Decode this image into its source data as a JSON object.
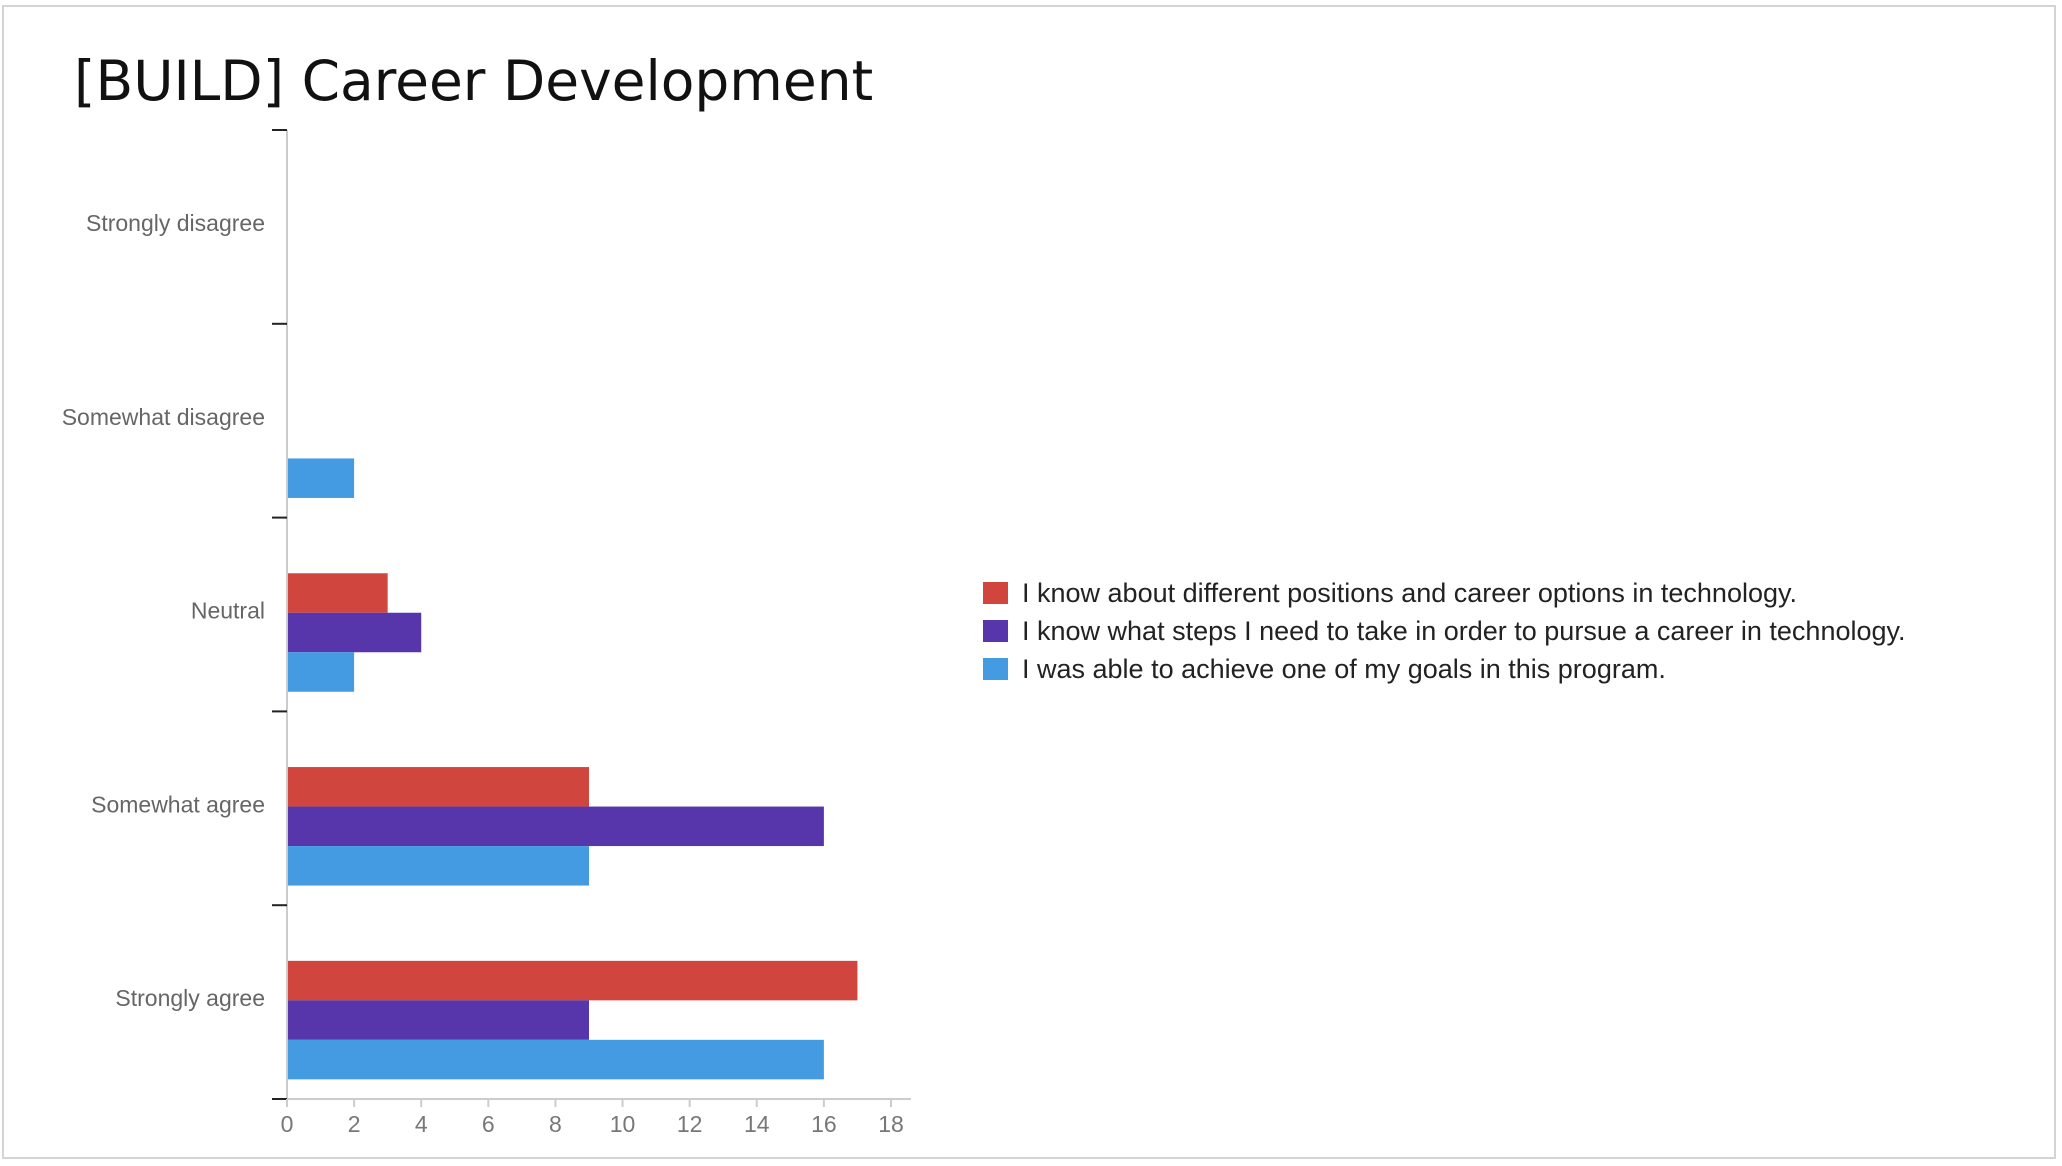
{
  "slide": {
    "title": "[BUILD] Career Development"
  },
  "chart_data": {
    "type": "bar",
    "orientation": "horizontal",
    "title": "",
    "xlabel": "",
    "ylabel": "",
    "categories": [
      "Strongly disagree",
      "Somewhat disagree",
      "Neutral",
      "Somewhat agree",
      "Strongly agree"
    ],
    "series": [
      {
        "name": "I know about different positions and career options in technology.",
        "color": "#d1453f",
        "values": [
          0,
          0,
          3,
          9,
          17
        ]
      },
      {
        "name": "I know what steps I need to take in order to pursue a career in technology.",
        "color": "#5735ab",
        "values": [
          0,
          0,
          4,
          16,
          9
        ]
      },
      {
        "name": "I was able to achieve one of my goals in this program.",
        "color": "#459be2",
        "values": [
          0,
          2,
          2,
          9,
          16
        ]
      }
    ],
    "xlim": [
      0,
      18
    ],
    "xticks": [
      0,
      2,
      4,
      6,
      8,
      10,
      12,
      14,
      16,
      18
    ],
    "grid": false,
    "legend_position": "right"
  }
}
